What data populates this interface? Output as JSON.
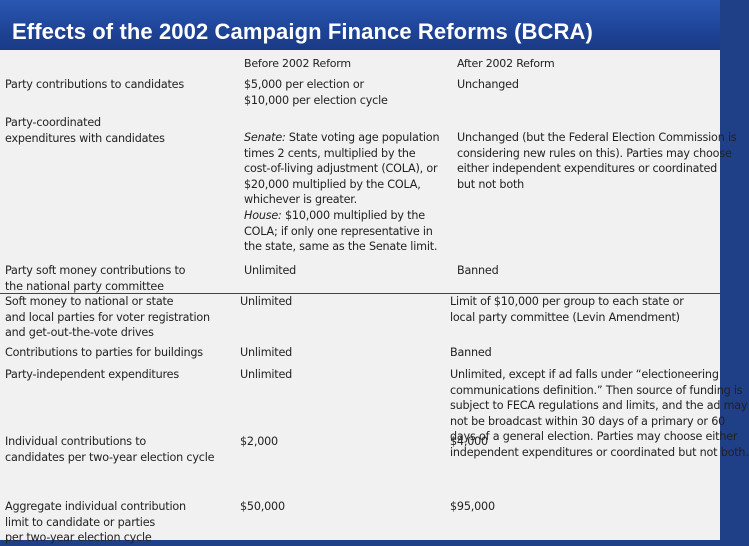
{
  "title": "Effects of the 2002 Campaign Finance Reforms (BCRA)",
  "table": {
    "headers": [
      "",
      "Before 2002 Reform",
      "After 2002 Reform"
    ],
    "rows": [
      {
        "label": [
          "Party contributions to candidates"
        ],
        "before": [
          "$5,000 per election or",
          "$10,000 per election cycle"
        ],
        "after": [
          "Unchanged"
        ]
      },
      {
        "label": [
          "Party-coordinated",
          "expenditures with candidates"
        ],
        "before_senate_prefix": "Senate:",
        "before_senate_first": " State voting age population",
        "before": [
          "times 2 cents, multiplied by the",
          "cost-of-living adjustment (COLA), or",
          "$20,000 multiplied by the COLA,",
          "whichever is greater."
        ],
        "before_house_prefix": "House:",
        "before_house_first": " $10,000 multiplied by the",
        "before_house": [
          "COLA; if only one representative in",
          "the state, same as the Senate limit."
        ],
        "after": [
          "Unchanged (but the Federal Election Commission is",
          "considering new rules on this). Parties may choose",
          "either independent expenditures or coordinated",
          "but not both"
        ]
      },
      {
        "label": [
          "Party soft money contributions to",
          "the national party committee"
        ],
        "before": [
          "Unlimited"
        ],
        "after": [
          "Banned"
        ]
      },
      {
        "label": [
          "Soft money to national or state",
          "and local parties for voter registration",
          "and get-out-the-vote drives"
        ],
        "before": [
          "Unlimited"
        ],
        "after": [
          "Limit of $10,000 per group to each state or",
          "local party committee (Levin Amendment)"
        ]
      },
      {
        "label": [
          "Contributions to parties for buildings"
        ],
        "before": [
          "Unlimited"
        ],
        "after": [
          "Banned"
        ]
      },
      {
        "label": [
          "Party-independent expenditures"
        ],
        "before": [
          "Unlimited"
        ],
        "after": [
          "Unlimited, except if ad falls under “electioneering",
          "communications definition.” Then source of funding is",
          "subject to FECA regulations and limits, and the ad may",
          "not be broadcast within 30 days of a primary or 60",
          "days of a general election. Parties may choose either",
          "independent expenditures or coordinated but not both."
        ]
      },
      {
        "label": [
          "Individual contributions to",
          "candidates per two-year election cycle"
        ],
        "before": [
          "$2,000"
        ],
        "after": [
          "$4,000"
        ]
      },
      {
        "label": [
          "Aggregate individual contribution",
          "limit to candidate or parties",
          "per two-year election cycle"
        ],
        "before": [
          "$50,000"
        ],
        "after": [
          "$95,000"
        ]
      }
    ]
  }
}
